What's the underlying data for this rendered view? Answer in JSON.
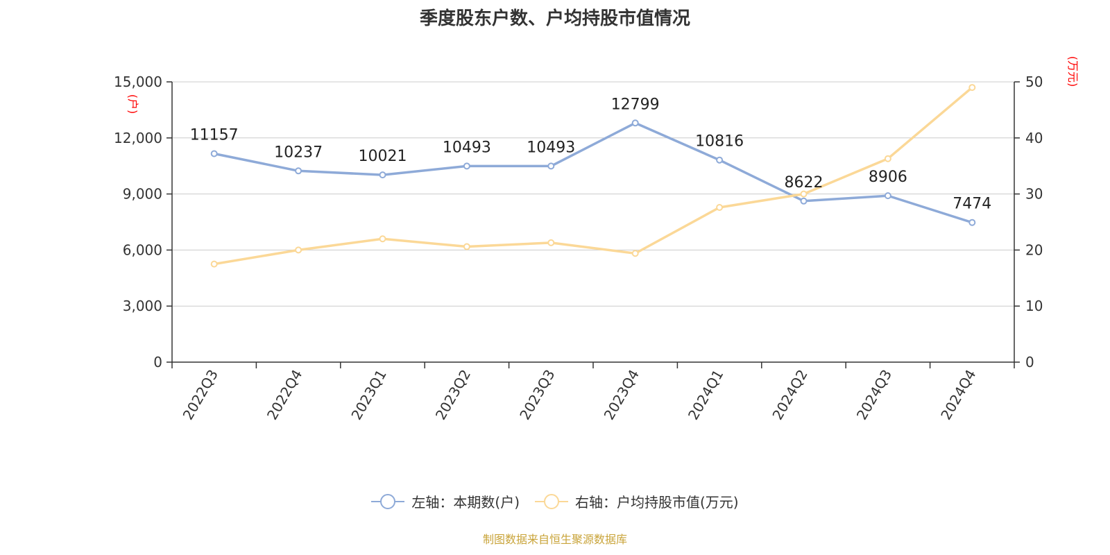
{
  "page": {
    "title": "季度股东户数、户均持股市值情况",
    "source": "制图数据来自恒生聚源数据库"
  },
  "legend": {
    "left_label": "左轴：本期数(户)",
    "right_label": "右轴：户均持股市值(万元)"
  },
  "colors": {
    "left_series": "#8eaad8",
    "right_series": "#fbd897",
    "unit_label": "#ff0000",
    "grid": "#cccccc",
    "axis": "#333333",
    "text": "#333333",
    "source": "#c9a43a"
  },
  "chart_data": {
    "type": "line",
    "title": "季度股东户数、户均持股市值情况",
    "categories": [
      "2022Q3",
      "2022Q4",
      "2023Q1",
      "2023Q2",
      "2023Q3",
      "2023Q4",
      "2024Q1",
      "2024Q2",
      "2024Q3",
      "2024Q4"
    ],
    "y_left": {
      "unit": "(户)",
      "min": 0,
      "max": 15000,
      "ticks": [
        "0",
        "3,000",
        "6,000",
        "9,000",
        "12,000",
        "15,000"
      ]
    },
    "y_right": {
      "unit": "(万元)",
      "min": 0,
      "max": 50,
      "ticks": [
        "0",
        "10",
        "20",
        "30",
        "40",
        "50"
      ]
    },
    "series": [
      {
        "name": "左轴：本期数(户)",
        "axis": "left",
        "values": [
          11157,
          10237,
          10021,
          10493,
          10493,
          12799,
          10816,
          8622,
          8906,
          7474
        ],
        "labels": [
          "11157",
          "10237",
          "10021",
          "10493",
          "10493",
          "12799",
          "10816",
          "8622",
          "8906",
          "7474"
        ]
      },
      {
        "name": "右轴：户均持股市值(万元)",
        "axis": "right",
        "values": [
          17.5,
          20.0,
          22.0,
          20.6,
          21.3,
          19.4,
          27.6,
          30.0,
          36.3,
          49.0
        ]
      }
    ],
    "grid": true,
    "legend_position": "bottom-center"
  }
}
